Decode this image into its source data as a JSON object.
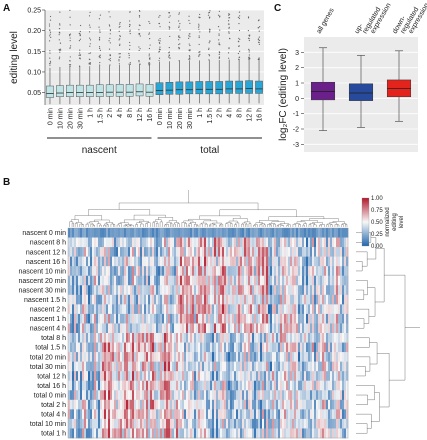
{
  "panel_labels": {
    "a": "A",
    "b": "B",
    "c": "C"
  },
  "colors": {
    "nascent_box": "#bfe5e6",
    "total_box": "#29a6d6",
    "all_genes": "#6b1f8a",
    "up_regulated": "#274a9c",
    "down_regulated": "#e3241d",
    "heat_high": "#b2182b",
    "heat_mid": "#f7f7f7",
    "heat_low": "#2166ac"
  },
  "chart_data": [
    {
      "type": "box",
      "ylabel": "editing level",
      "ylim": [
        0.02,
        0.25
      ],
      "yticks": [
        "0.25",
        "0.20",
        "0.15",
        "0.10",
        "0.05"
      ],
      "categories": [
        "0 min",
        "10 min",
        "20 min",
        "30 min",
        "1 h",
        "1.5 h",
        "2 h",
        "4 h",
        "8 h",
        "12 h",
        "16 h",
        "0 min",
        "10 min",
        "20 min",
        "30 min",
        "1 h",
        "1.5 h",
        "2 h",
        "4 h",
        "8 h",
        "12 h",
        "16 h"
      ],
      "groups": [
        "nascent",
        "total"
      ],
      "series": [
        {
          "name": "nascent",
          "q1": [
            0.038,
            0.04,
            0.04,
            0.04,
            0.04,
            0.04,
            0.041,
            0.041,
            0.041,
            0.042,
            0.041
          ],
          "median": [
            0.048,
            0.049,
            0.05,
            0.05,
            0.05,
            0.05,
            0.051,
            0.051,
            0.051,
            0.052,
            0.051
          ],
          "q3": [
            0.066,
            0.067,
            0.068,
            0.068,
            0.068,
            0.069,
            0.069,
            0.07,
            0.07,
            0.071,
            0.07
          ],
          "whisker_low": [
            0.022,
            0.022,
            0.022,
            0.022,
            0.022,
            0.022,
            0.022,
            0.022,
            0.022,
            0.022,
            0.022
          ],
          "whisker_high": [
            0.11,
            0.112,
            0.113,
            0.114,
            0.114,
            0.115,
            0.116,
            0.117,
            0.117,
            0.118,
            0.117
          ]
        },
        {
          "name": "total",
          "q1": [
            0.045,
            0.046,
            0.046,
            0.047,
            0.047,
            0.047,
            0.047,
            0.048,
            0.048,
            0.048,
            0.048
          ],
          "median": [
            0.055,
            0.056,
            0.057,
            0.057,
            0.058,
            0.058,
            0.058,
            0.059,
            0.059,
            0.06,
            0.059
          ],
          "q3": [
            0.074,
            0.075,
            0.076,
            0.076,
            0.077,
            0.077,
            0.077,
            0.078,
            0.078,
            0.079,
            0.078
          ],
          "whisker_low": [
            0.024,
            0.024,
            0.024,
            0.024,
            0.024,
            0.024,
            0.024,
            0.024,
            0.024,
            0.024,
            0.024
          ],
          "whisker_high": [
            0.125,
            0.126,
            0.127,
            0.128,
            0.128,
            0.129,
            0.129,
            0.13,
            0.13,
            0.131,
            0.13
          ]
        }
      ]
    },
    {
      "type": "heatmap",
      "legend_title": "normalized editing level",
      "legend_ticks": [
        "1.00",
        "0.75",
        "0.50",
        "0.25",
        "0.00"
      ],
      "rows": [
        "nascent 0 min",
        "nascent 8 h",
        "nascent 12 h",
        "nascent 16 h",
        "nascent 10 min",
        "nascent 20 min",
        "nascent 30 min",
        "nascent 1.5 h",
        "nascent 2 h",
        "nascent 1 h",
        "nascent 4 h",
        "total 8 h",
        "total 1.5 h",
        "total 20 min",
        "total 30 min",
        "total 12 h",
        "total 16 h",
        "total 0 min",
        "total 2 h",
        "total 4 h",
        "total 10 min",
        "total 1 h"
      ]
    },
    {
      "type": "box",
      "ylabel": "log₂FC (editing level)",
      "ylim": [
        -3.5,
        4
      ],
      "yticks": [
        "3",
        "2",
        "1",
        "0",
        "-1",
        "-2",
        "-3"
      ],
      "categories": [
        "all genes",
        "up-regulated expression",
        "down-regulated expression"
      ],
      "category_lines": [
        [
          "all genes"
        ],
        [
          "up-",
          "regulated",
          "expression"
        ],
        [
          "down-",
          "regulated",
          "expression"
        ]
      ],
      "q1": [
        -0.1,
        -0.15,
        0.1
      ],
      "median": [
        0.45,
        0.35,
        0.65
      ],
      "q3": [
        1.05,
        0.95,
        1.2
      ],
      "whisker_low": [
        -2.1,
        -1.9,
        -1.5
      ],
      "whisker_high": [
        3.3,
        2.8,
        3.1
      ]
    }
  ]
}
